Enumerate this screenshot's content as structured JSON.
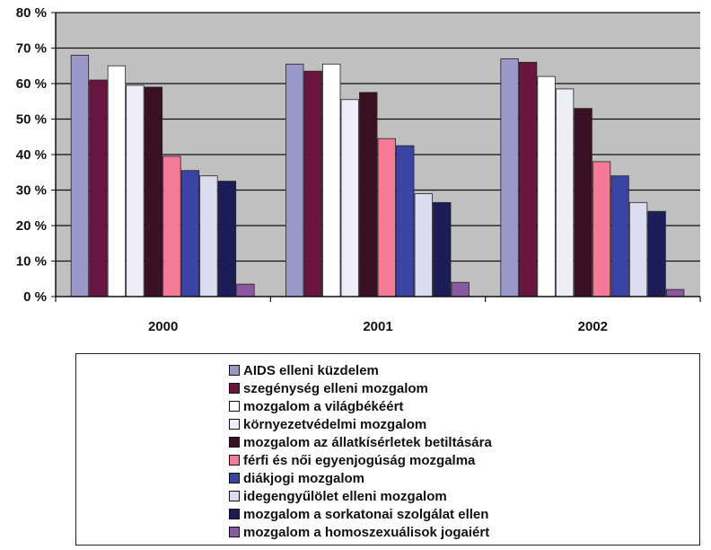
{
  "chart_data": {
    "type": "bar",
    "categories": [
      "2000",
      "2001",
      "2002"
    ],
    "ylim": [
      0,
      80
    ],
    "yticks": [
      "0 %",
      "10 %",
      "20 %",
      "30 %",
      "40 %",
      "50 %",
      "60 %",
      "70 %",
      "80 %"
    ],
    "grid": true,
    "plot_background": "#c0c0c0",
    "legend_position": "bottom",
    "series": [
      {
        "name": "AIDS elleni küzdelem",
        "color": "#9a98c8",
        "values": [
          68,
          65.5,
          67
        ]
      },
      {
        "name": "szegénység elleni mozgalom",
        "color": "#6a1440",
        "values": [
          61,
          63.5,
          66
        ]
      },
      {
        "name": "mozgalom a világbékéért",
        "color": "#ffffff",
        "values": [
          65,
          65.5,
          62
        ]
      },
      {
        "name": "környezetvédelmi mozgalom",
        "color": "#eeeef8",
        "values": [
          59.5,
          55.5,
          58.5
        ]
      },
      {
        "name": "mozgalom az állatkísérletek betiltására",
        "color": "#3a1024",
        "values": [
          59,
          57.5,
          53
        ]
      },
      {
        "name": "férfi és női egyenjogúság mozgalma",
        "color": "#f47a98",
        "values": [
          39.5,
          44.5,
          38
        ]
      },
      {
        "name": "diákjogi mozgalom",
        "color": "#3a44a4",
        "values": [
          35.5,
          42.5,
          34
        ]
      },
      {
        "name": "idegengyűlölet elleni mozgalom",
        "color": "#dcdcf0",
        "values": [
          34,
          29,
          26.5
        ]
      },
      {
        "name": "mozgalom a sorkatonai szolgálat ellen",
        "color": "#1c1c58",
        "values": [
          32.5,
          26.5,
          24
        ]
      },
      {
        "name": "mozgalom a homoszexuálisok jogaiért",
        "color": "#8a5aa0",
        "values": [
          3.5,
          4,
          2
        ]
      }
    ]
  }
}
